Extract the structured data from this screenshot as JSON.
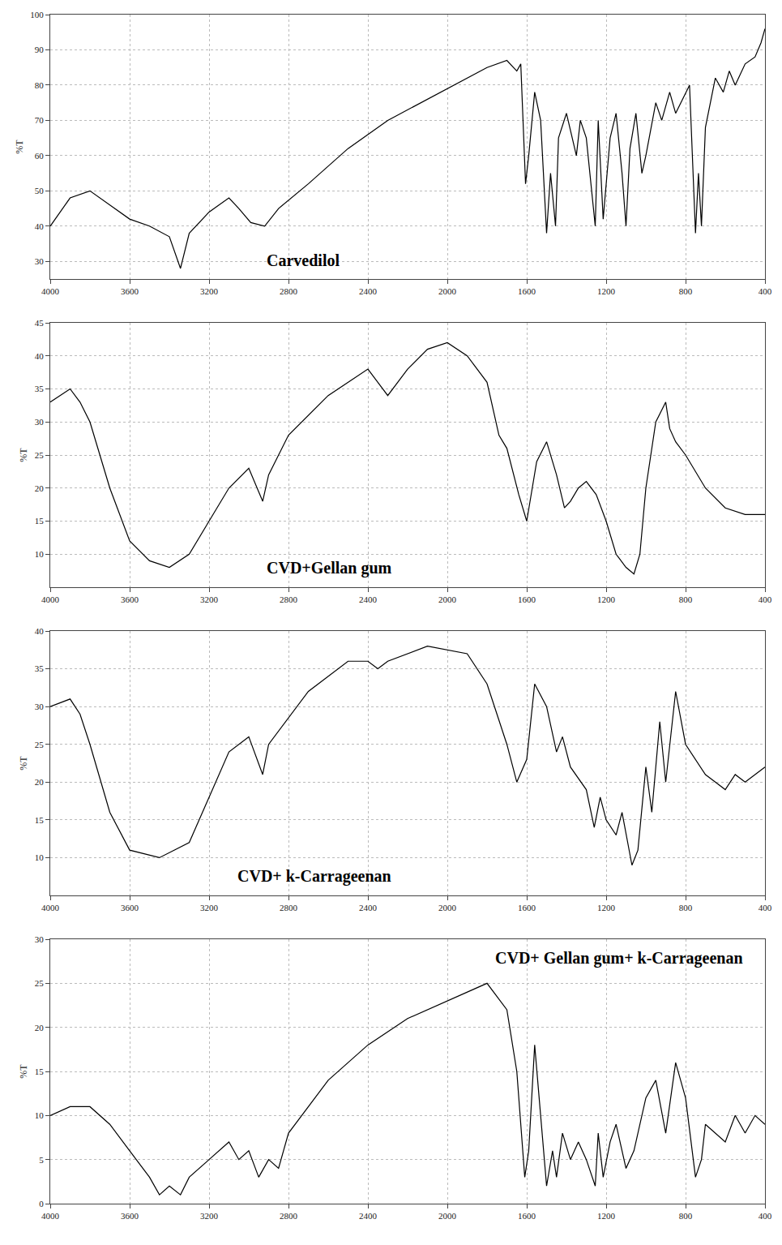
{
  "chart_data": [
    {
      "type": "line",
      "title": "Carvedilol",
      "ylabel": "%T",
      "color": "#000000",
      "grid": true,
      "xlim": [
        4000,
        400
      ],
      "xticks": [
        4000,
        3600,
        3200,
        2800,
        2400,
        2000,
        1600,
        1200,
        800,
        400
      ],
      "ylim": [
        25,
        100
      ],
      "yticks": [
        30,
        40,
        50,
        60,
        70,
        80,
        90,
        100
      ],
      "x": [
        4000,
        3900,
        3800,
        3700,
        3600,
        3500,
        3400,
        3344,
        3300,
        3200,
        3100,
        3050,
        2990,
        2920,
        2850,
        2700,
        2500,
        2300,
        2100,
        2000,
        1900,
        1800,
        1700,
        1650,
        1630,
        1606,
        1590,
        1560,
        1530,
        1500,
        1480,
        1455,
        1440,
        1400,
        1350,
        1330,
        1300,
        1255,
        1240,
        1215,
        1180,
        1150,
        1120,
        1100,
        1080,
        1050,
        1020,
        1000,
        950,
        920,
        880,
        850,
        780,
        750,
        735,
        720,
        700,
        650,
        610,
        580,
        550,
        500,
        450,
        420,
        400
      ],
      "values": [
        40,
        48,
        50,
        46,
        42,
        40,
        37,
        28,
        38,
        44,
        48,
        45,
        41,
        40,
        45,
        52,
        62,
        70,
        76,
        79,
        82,
        85,
        87,
        84,
        86,
        52,
        60,
        78,
        70,
        38,
        55,
        40,
        65,
        72,
        60,
        70,
        65,
        40,
        70,
        42,
        65,
        72,
        55,
        40,
        62,
        72,
        55,
        60,
        75,
        70,
        78,
        72,
        80,
        38,
        55,
        40,
        68,
        82,
        78,
        84,
        80,
        86,
        88,
        92,
        96
      ]
    },
    {
      "type": "line",
      "title": "CVD+Gellan gum",
      "ylabel": "%T",
      "color": "#000000",
      "grid": true,
      "xlim": [
        4000,
        400
      ],
      "xticks": [
        4000,
        3600,
        3200,
        2800,
        2400,
        2000,
        1600,
        1200,
        800,
        400
      ],
      "ylim": [
        5,
        45
      ],
      "yticks": [
        10,
        15,
        20,
        25,
        30,
        35,
        40,
        45
      ],
      "x": [
        4000,
        3900,
        3850,
        3800,
        3700,
        3600,
        3500,
        3400,
        3300,
        3200,
        3100,
        3000,
        2930,
        2900,
        2800,
        2600,
        2400,
        2350,
        2300,
        2200,
        2100,
        2000,
        1900,
        1800,
        1740,
        1700,
        1640,
        1600,
        1550,
        1500,
        1450,
        1410,
        1380,
        1340,
        1300,
        1250,
        1200,
        1150,
        1100,
        1060,
        1030,
        1000,
        950,
        900,
        880,
        850,
        800,
        700,
        600,
        500,
        400
      ],
      "values": [
        33,
        35,
        33,
        30,
        20,
        12,
        9,
        8,
        10,
        15,
        20,
        23,
        18,
        22,
        28,
        34,
        38,
        36,
        34,
        38,
        41,
        42,
        40,
        36,
        28,
        26,
        19,
        15,
        24,
        27,
        22,
        17,
        18,
        20,
        21,
        19,
        15,
        10,
        8,
        7,
        10,
        20,
        30,
        33,
        29,
        27,
        25,
        20,
        17,
        16,
        16
      ]
    },
    {
      "type": "line",
      "title": "CVD+ k-Carrageenan",
      "ylabel": "%T",
      "color": "#000000",
      "grid": true,
      "xlim": [
        4000,
        400
      ],
      "xticks": [
        4000,
        3600,
        3200,
        2800,
        2400,
        2000,
        1600,
        1200,
        800,
        400
      ],
      "ylim": [
        5,
        40
      ],
      "yticks": [
        10,
        15,
        20,
        25,
        30,
        35,
        40
      ],
      "x": [
        4000,
        3900,
        3850,
        3800,
        3700,
        3600,
        3450,
        3300,
        3200,
        3100,
        3000,
        2930,
        2900,
        2700,
        2500,
        2400,
        2350,
        2300,
        2100,
        1900,
        1800,
        1700,
        1650,
        1600,
        1560,
        1500,
        1450,
        1420,
        1380,
        1300,
        1260,
        1230,
        1200,
        1150,
        1120,
        1070,
        1040,
        1000,
        970,
        930,
        900,
        850,
        800,
        750,
        700,
        650,
        600,
        550,
        500,
        450,
        400
      ],
      "values": [
        30,
        31,
        29,
        25,
        16,
        11,
        10,
        12,
        18,
        24,
        26,
        21,
        25,
        32,
        36,
        36,
        35,
        36,
        38,
        37,
        33,
        25,
        20,
        23,
        33,
        30,
        24,
        26,
        22,
        19,
        14,
        18,
        15,
        13,
        16,
        9,
        11,
        22,
        16,
        28,
        20,
        32,
        25,
        23,
        21,
        20,
        19,
        21,
        20,
        21,
        22
      ]
    },
    {
      "type": "line",
      "title": "CVD+ Gellan gum+ k-Carrageenan",
      "ylabel": "%T",
      "color": "#000000",
      "grid": true,
      "xlim": [
        4000,
        400
      ],
      "xticks": [
        4000,
        3600,
        3200,
        2800,
        2400,
        2000,
        1600,
        1200,
        800,
        400
      ],
      "ylim": [
        0,
        30
      ],
      "yticks": [
        0,
        5,
        10,
        15,
        20,
        25,
        30
      ],
      "x": [
        4000,
        3900,
        3800,
        3700,
        3600,
        3500,
        3450,
        3400,
        3344,
        3300,
        3200,
        3100,
        3050,
        3000,
        2950,
        2900,
        2850,
        2800,
        2600,
        2400,
        2200,
        2100,
        2000,
        1900,
        1800,
        1700,
        1650,
        1610,
        1590,
        1560,
        1530,
        1500,
        1470,
        1450,
        1420,
        1380,
        1340,
        1300,
        1255,
        1240,
        1215,
        1180,
        1150,
        1100,
        1060,
        1020,
        1000,
        950,
        900,
        850,
        800,
        750,
        720,
        700,
        650,
        600,
        550,
        500,
        450,
        400
      ],
      "values": [
        10,
        11,
        11,
        9,
        6,
        3,
        1,
        2,
        1,
        3,
        5,
        7,
        5,
        6,
        3,
        5,
        4,
        8,
        14,
        18,
        21,
        22,
        23,
        24,
        25,
        22,
        15,
        3,
        6,
        18,
        10,
        2,
        6,
        3,
        8,
        5,
        7,
        5,
        2,
        8,
        3,
        7,
        9,
        4,
        6,
        10,
        12,
        14,
        8,
        16,
        12,
        3,
        5,
        9,
        8,
        7,
        10,
        8,
        10,
        9
      ]
    }
  ]
}
